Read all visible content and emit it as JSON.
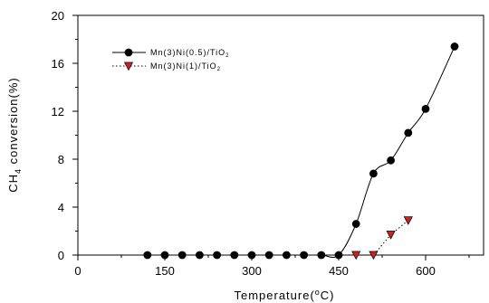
{
  "chart_data": {
    "type": "line",
    "xlabel": {
      "main": "Temperature(",
      "sup": "o",
      "end": "C)"
    },
    "ylabel": {
      "pre": "CH",
      "sub": "4",
      "post": " conversion(%)"
    },
    "xlim": [
      0,
      700
    ],
    "ylim": [
      0,
      20
    ],
    "xticks": [
      0,
      150,
      300,
      450,
      600
    ],
    "yticks": [
      0,
      4,
      8,
      12,
      16,
      20
    ],
    "x_minor_ticks": [
      75,
      225,
      375,
      525,
      675
    ],
    "y_minor_ticks": [
      2,
      6,
      10,
      14,
      18
    ],
    "grid": false,
    "legend_position": "top-left",
    "series": [
      {
        "legend": {
          "pre": "Mn(3)Ni(0.5)/TiO",
          "sub": "2"
        },
        "color": "#000000",
        "marker": "circle",
        "marker_color": "#000000",
        "line_style": "solid",
        "smooth": true,
        "x": [
          120,
          150,
          180,
          210,
          240,
          270,
          300,
          330,
          360,
          390,
          420,
          450,
          480,
          510,
          540,
          570,
          600,
          650
        ],
        "y": [
          0,
          0,
          0,
          0,
          0,
          0,
          0,
          0,
          0,
          0,
          0,
          0,
          2.6,
          6.8,
          7.9,
          10.2,
          12.2,
          17.4
        ]
      },
      {
        "legend": {
          "pre": "Mn(3)Ni(1)/TiO",
          "sub": "2"
        },
        "color": "#000000",
        "marker": "triangle-down",
        "marker_color": "#cc2222",
        "line_style": "dotted",
        "smooth": false,
        "x": [
          480,
          510,
          540,
          570
        ],
        "y": [
          0,
          0,
          1.7,
          2.9
        ]
      }
    ]
  }
}
